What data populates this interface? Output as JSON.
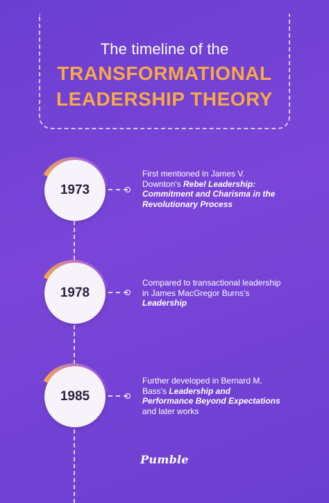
{
  "header": {
    "line1": "The timeline of the",
    "line2": "TRANSFORMATIONAL",
    "line3": "LEADERSHIP THEORY"
  },
  "events": [
    {
      "year": "1973",
      "text_plain": "First mentioned in James V. Downton's ",
      "text_bold": "Rebel Leadership: Commitment and Charisma in the Revolutionary Process",
      "text_after": ""
    },
    {
      "year": "1978",
      "text_plain": "Compared to transactional leadership in James MacGregor Burns's ",
      "text_bold": "Leadership",
      "text_after": ""
    },
    {
      "year": "1985",
      "text_plain": "Further developed in Bernard M. Bass's ",
      "text_bold": "Leadership and Performance Beyond Expectations",
      "text_after": " and later works"
    }
  ],
  "logo": "Pumble",
  "colors": {
    "background": "#6a3fd1",
    "accent": "#f7a948",
    "circle": "#f7f3fb"
  }
}
